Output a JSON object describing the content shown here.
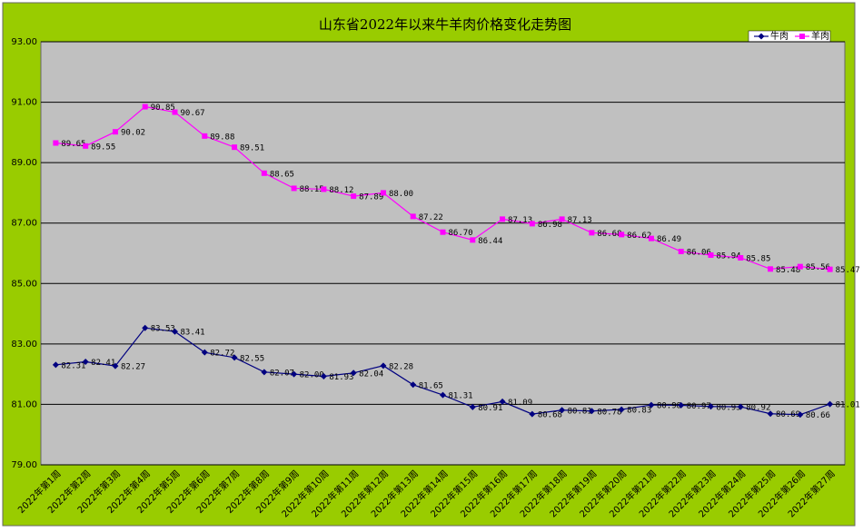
{
  "chart_data": {
    "type": "line",
    "title": "山东省2022年以来牛羊肉价格变化走势图",
    "categories": [
      "2022年第1周",
      "2022年第2周",
      "2022年第3周",
      "2022年第4周",
      "2022年第5周",
      "2022年第6周",
      "2022年第7周",
      "2022年第8周",
      "2022年第9周",
      "2022年第10周",
      "2022年第11周",
      "2022年第12周",
      "2022年第13周",
      "2022年第14周",
      "2022年第15周",
      "2022年第16周",
      "2022年第17周",
      "2022年第18周",
      "2022年第19周",
      "2022年第20周",
      "2022年第21周",
      "2022年第22周",
      "2022年第23周",
      "2022年第24周",
      "2022年第25周",
      "2022年第26周",
      "2022年第27周"
    ],
    "series": [
      {
        "name": "牛肉",
        "color": "#000080",
        "marker": "diamond",
        "values": [
          82.31,
          82.41,
          82.27,
          83.53,
          83.41,
          82.72,
          82.55,
          82.07,
          82.0,
          81.93,
          82.04,
          82.28,
          81.65,
          81.31,
          80.91,
          81.09,
          80.68,
          80.81,
          80.78,
          80.83,
          80.98,
          80.97,
          80.93,
          80.92,
          80.69,
          80.66,
          81.01
        ],
        "value_labels": [
          "82.31",
          "82.41",
          "82.27",
          "83.53",
          "83.41",
          "82.72",
          "82.55",
          "82.07",
          "82.00",
          "81.93",
          "82.04",
          "82.28",
          "81.65",
          "81.31",
          "80.91",
          "81.09",
          "80.68",
          "80.81",
          "80.78",
          "80.83",
          "80.98",
          "80.97",
          "80.93",
          "80.92",
          "80.69",
          "80.66",
          "81.01"
        ]
      },
      {
        "name": "羊肉",
        "color": "#ff00ff",
        "marker": "square",
        "values": [
          89.65,
          89.55,
          90.02,
          90.85,
          90.67,
          89.88,
          89.51,
          88.65,
          88.15,
          88.12,
          87.89,
          88.0,
          87.22,
          86.7,
          86.44,
          87.13,
          86.98,
          87.13,
          86.68,
          86.62,
          86.49,
          86.06,
          85.94,
          85.85,
          85.48,
          85.56,
          85.47
        ],
        "value_labels": [
          "89.65",
          "89.55",
          "90.02",
          "90.85",
          "90.67",
          "89.88",
          "89.51",
          "88.65",
          "88.15",
          "88.12",
          "87.89",
          "88.00",
          "87.22",
          "86.70",
          "86.44",
          "87.13",
          "86.98",
          "87.13",
          "86.68",
          "86.62",
          "86.49",
          "86.06",
          "85.94",
          "85.85",
          "85.48",
          "85.56",
          "85.47"
        ]
      }
    ],
    "ylim": [
      79,
      93
    ],
    "yticks": [
      {
        "value": 79,
        "label": "79.00"
      },
      {
        "value": 81,
        "label": "81.00"
      },
      {
        "value": 83,
        "label": "83.00"
      },
      {
        "value": 85,
        "label": "85.00"
      },
      {
        "value": 87,
        "label": "87.00"
      },
      {
        "value": 89,
        "label": "89.00"
      },
      {
        "value": 91,
        "label": "91.00"
      },
      {
        "value": 93,
        "label": "93.00"
      }
    ],
    "grid": true,
    "legend": "top-right"
  }
}
